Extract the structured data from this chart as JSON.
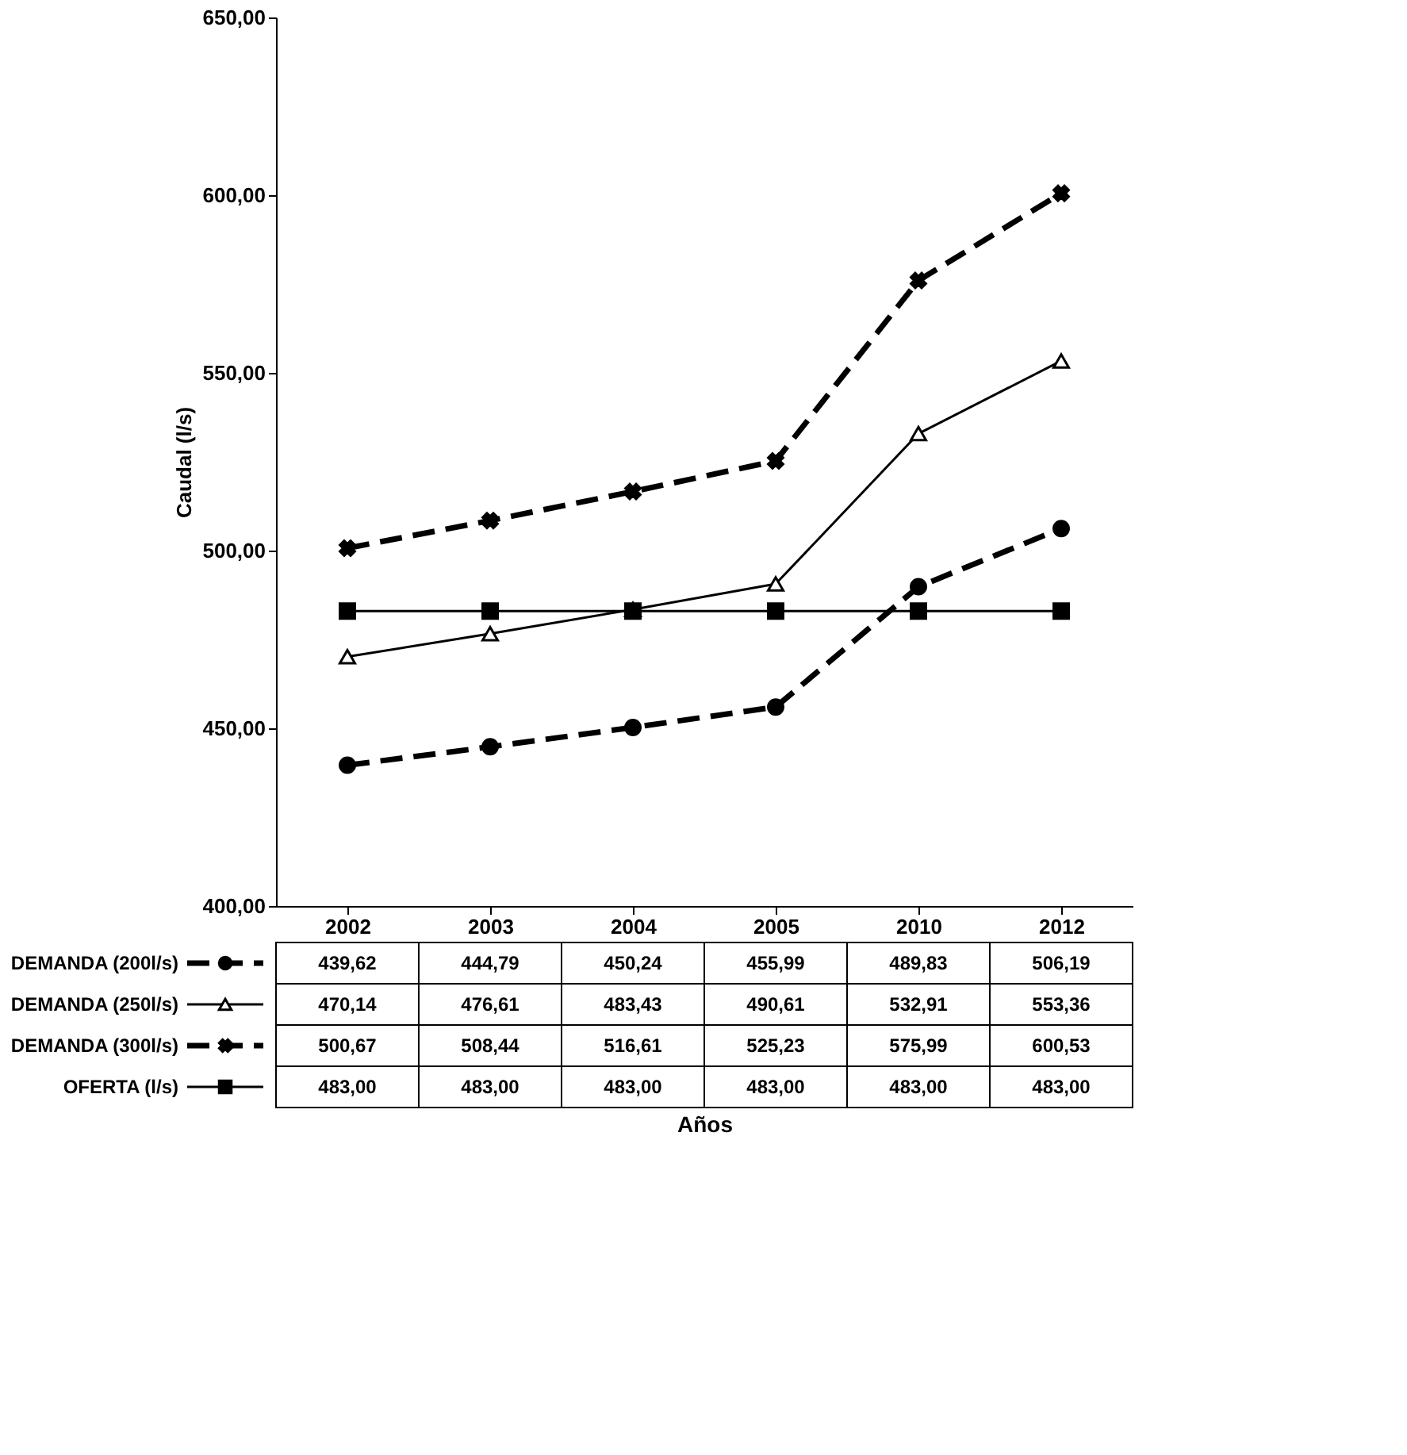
{
  "chart_data": {
    "type": "line",
    "annotations": [
      "Años"
    ],
    "ylabel": "Caudal (l/s)",
    "categories": [
      "2002",
      "2003",
      "2004",
      "2005",
      "2010",
      "2012"
    ],
    "series": [
      {
        "name": "DEMANDA (200l/s)",
        "color": "#000000",
        "marker": "circle",
        "line_style": "dashed",
        "values": [
          439.62,
          444.79,
          450.24,
          455.99,
          489.83,
          506.19
        ],
        "value_labels": [
          "439,62",
          "444,79",
          "450,24",
          "455,99",
          "489,83",
          "506,19"
        ]
      },
      {
        "name": "DEMANDA (250l/s)",
        "color": "#000000",
        "marker": "triangle",
        "line_style": "solid",
        "values": [
          470.14,
          476.61,
          483.43,
          490.61,
          532.91,
          553.36
        ],
        "value_labels": [
          "470,14",
          "476,61",
          "483,43",
          "490,61",
          "532,91",
          "553,36"
        ]
      },
      {
        "name": "DEMANDA (300l/s)",
        "color": "#000000",
        "marker": "cross",
        "line_style": "dashed",
        "values": [
          500.67,
          508.44,
          516.61,
          525.23,
          575.99,
          600.53
        ],
        "value_labels": [
          "500,67",
          "508,44",
          "516,61",
          "525,23",
          "575,99",
          "600,53"
        ]
      },
      {
        "name": "OFERTA (l/s)",
        "color": "#000000",
        "marker": "square",
        "line_style": "solid",
        "values": [
          483.0,
          483.0,
          483.0,
          483.0,
          483.0,
          483.0
        ],
        "value_labels": [
          "483,00",
          "483,00",
          "483,00",
          "483,00",
          "483,00",
          "483,00"
        ]
      }
    ],
    "ylim": [
      400,
      650
    ],
    "yticks": [
      {
        "value": 400,
        "label": "400,00"
      },
      {
        "value": 450,
        "label": "450,00"
      },
      {
        "value": 500,
        "label": "500,00"
      },
      {
        "value": 550,
        "label": "550,00"
      },
      {
        "value": 600,
        "label": "600,00"
      },
      {
        "value": 650,
        "label": "650,00"
      }
    ],
    "grid": false,
    "legend": "bottom"
  }
}
